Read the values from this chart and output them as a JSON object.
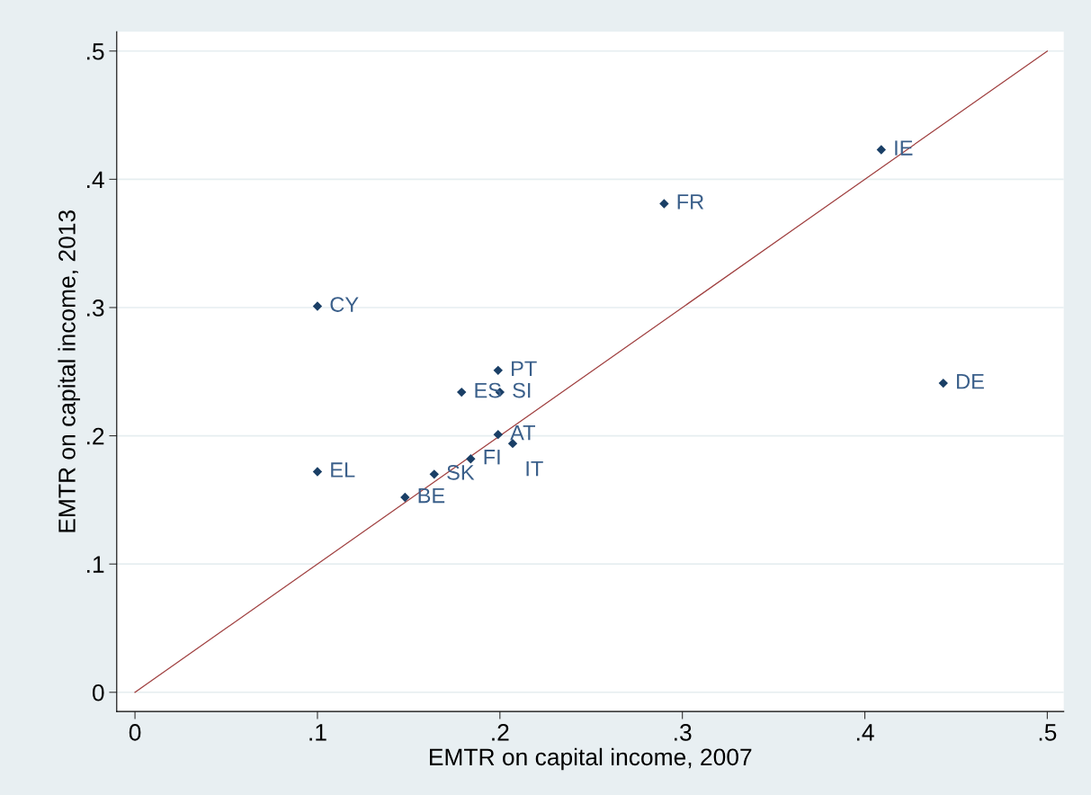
{
  "chart_data": {
    "type": "scatter",
    "xlabel": "EMTR on capital income, 2007",
    "ylabel": "EMTR on capital income, 2013",
    "xlim": [
      -0.01,
      0.509
    ],
    "ylim": [
      -0.015,
      0.515
    ],
    "xticks": [
      {
        "value": 0,
        "label": "0"
      },
      {
        "value": 0.1,
        "label": ".1"
      },
      {
        "value": 0.2,
        "label": ".2"
      },
      {
        "value": 0.3,
        "label": ".3"
      },
      {
        "value": 0.4,
        "label": ".4"
      },
      {
        "value": 0.5,
        "label": ".5"
      }
    ],
    "yticks": [
      {
        "value": 0,
        "label": "0"
      },
      {
        "value": 0.1,
        "label": ".1"
      },
      {
        "value": 0.2,
        "label": ".2"
      },
      {
        "value": 0.3,
        "label": ".3"
      },
      {
        "value": 0.4,
        "label": ".4"
      },
      {
        "value": 0.5,
        "label": ".5"
      }
    ],
    "grid": "y",
    "legend": false,
    "series": [
      {
        "type": "line",
        "marker": "none",
        "color": "#a04040",
        "x": [
          0,
          0.5
        ],
        "values": [
          0,
          0.5
        ]
      },
      {
        "marker": "diamond",
        "color": "#1a3f66",
        "x": [
          0.1,
          0.1,
          0.148,
          0.164,
          0.184,
          0.199,
          0.207,
          0.179,
          0.2,
          0.199,
          0.29,
          0.409,
          0.443
        ],
        "values": [
          0.301,
          0.172,
          0.152,
          0.17,
          0.182,
          0.201,
          0.194,
          0.234,
          0.234,
          0.251,
          0.381,
          0.423,
          0.241
        ]
      }
    ],
    "annotations": [
      {
        "text": "CY",
        "x": 0.1,
        "y": 0.301
      },
      {
        "text": "EL",
        "x": 0.1,
        "y": 0.172
      },
      {
        "text": "BE",
        "x": 0.148,
        "y": 0.152
      },
      {
        "text": "SK",
        "x": 0.164,
        "y": 0.17
      },
      {
        "text": "FI",
        "x": 0.184,
        "y": 0.182
      },
      {
        "text": "AT",
        "x": 0.199,
        "y": 0.201
      },
      {
        "text": "IT",
        "x": 0.207,
        "y": 0.194
      },
      {
        "text": "ES",
        "x": 0.179,
        "y": 0.234
      },
      {
        "text": "SI",
        "x": 0.2,
        "y": 0.234
      },
      {
        "text": "PT",
        "x": 0.199,
        "y": 0.251
      },
      {
        "text": "FR",
        "x": 0.29,
        "y": 0.381
      },
      {
        "text": "IE",
        "x": 0.409,
        "y": 0.423
      },
      {
        "text": "DE",
        "x": 0.443,
        "y": 0.241
      }
    ]
  }
}
